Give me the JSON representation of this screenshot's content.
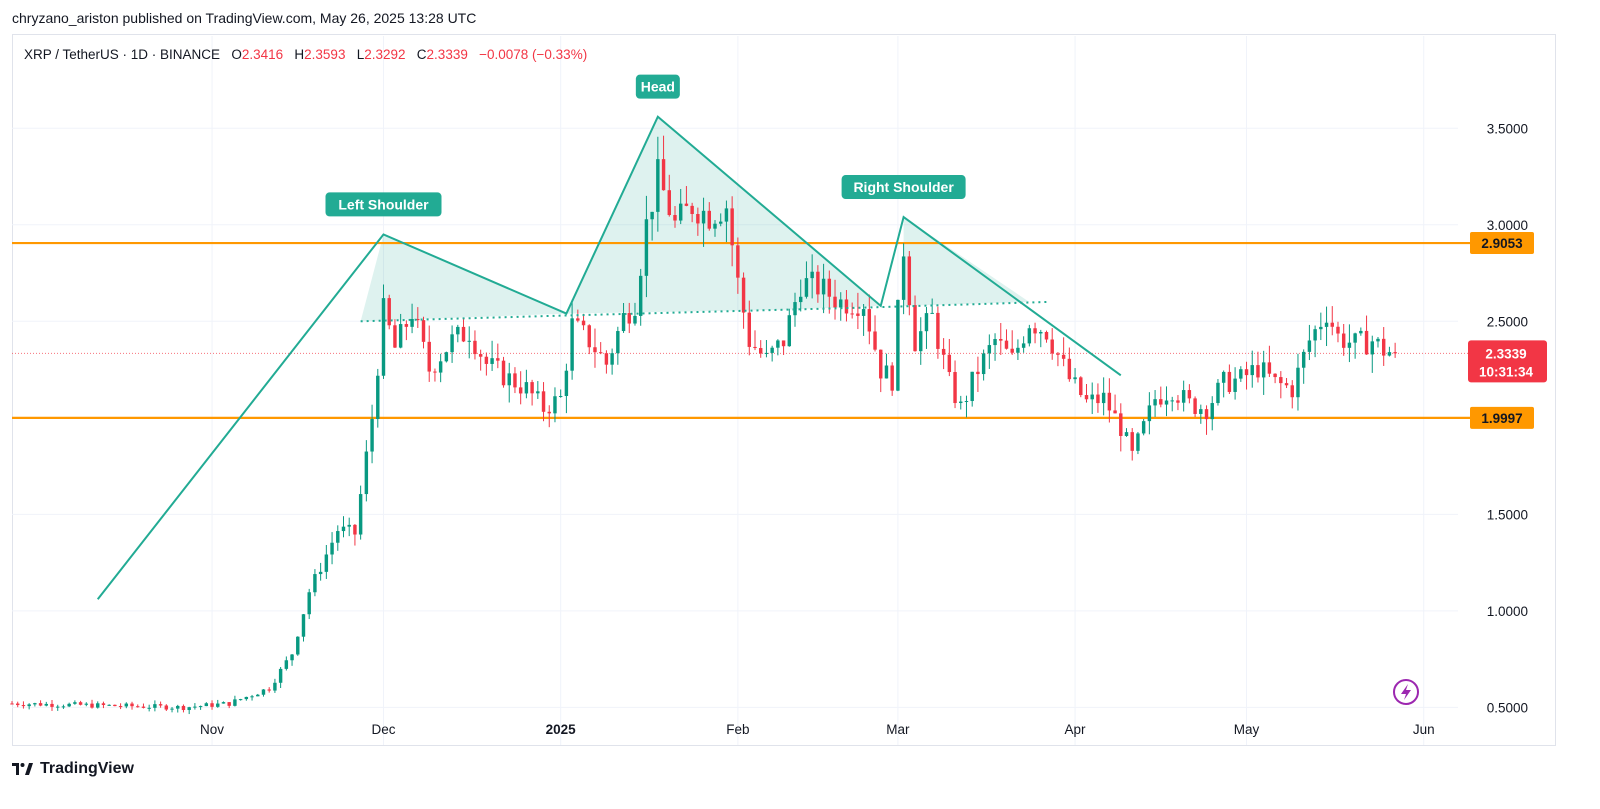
{
  "header": {
    "publish_line": "chryzano_ariston published on TradingView.com, May 26, 2025 13:28 UTC"
  },
  "legend": {
    "symbol": "XRP / TetherUS · 1D · BINANCE",
    "open_key": "O",
    "open": "2.3416",
    "high_key": "H",
    "high": "2.3593",
    "low_key": "L",
    "low": "2.3292",
    "close_key": "C",
    "close": "2.3339",
    "change": "−0.0078 (−0.33%)"
  },
  "footer": {
    "brand": "TradingView"
  },
  "chart_data": {
    "type": "candlestick",
    "ylim": [
      0.45,
      3.75
    ],
    "y_ticks": [
      "3.5000",
      "3.0000",
      "2.5000",
      "2.0000",
      "1.5000",
      "1.0000",
      "0.5000"
    ],
    "y_tick_values": [
      3.5,
      3.0,
      2.5,
      2.0,
      1.5,
      1.0,
      0.5
    ],
    "x_range_days": [
      -35,
      218
    ],
    "x_ticks": [
      {
        "label": "Nov",
        "day": 0,
        "bold": false
      },
      {
        "label": "Dec",
        "day": 30,
        "bold": false
      },
      {
        "label": "2025",
        "day": 61,
        "bold": true
      },
      {
        "label": "Feb",
        "day": 92,
        "bold": false
      },
      {
        "label": "Mar",
        "day": 120,
        "bold": false
      },
      {
        "label": "Apr",
        "day": 151,
        "bold": false
      },
      {
        "label": "May",
        "day": 181,
        "bold": false
      },
      {
        "label": "Jun",
        "day": 212,
        "bold": false
      }
    ],
    "x_axis_origin": "2024-11-01",
    "price_levels": [
      {
        "label": "2.9053",
        "value": 2.9053,
        "color": "#ff9800"
      },
      {
        "label": "1.9997",
        "value": 1.9997,
        "color": "#ff9800"
      }
    ],
    "current_price": {
      "label": "2.3339",
      "value": 2.3339,
      "countdown": "10:31:34",
      "color": "#f23645"
    },
    "annotations": [
      {
        "label": "Left Shoulder",
        "day": 30,
        "value": 2.95
      },
      {
        "label": "Head",
        "day": 78,
        "value": 3.56
      },
      {
        "label": "Right Shoulder",
        "day": 121,
        "value": 3.04
      }
    ],
    "pattern_lines": [
      [
        [
          -20,
          1.06
        ],
        [
          30,
          2.95
        ],
        [
          62,
          2.54
        ],
        [
          78,
          3.56
        ],
        [
          117,
          2.58
        ],
        [
          121,
          3.04
        ],
        [
          159,
          2.22
        ]
      ]
    ],
    "neckline": [
      [
        26,
        2.5
      ],
      [
        62,
        2.53
      ],
      [
        113,
        2.57
      ],
      [
        146,
        2.6
      ]
    ],
    "shaded_regions": [
      [
        [
          26,
          2.5
        ],
        [
          30,
          2.95
        ],
        [
          62,
          2.54
        ]
      ],
      [
        [
          62,
          2.54
        ],
        [
          78,
          3.56
        ],
        [
          117,
          2.58
        ],
        [
          100,
          2.56
        ]
      ],
      [
        [
          121,
          3.04
        ],
        [
          143,
          2.6
        ],
        [
          121,
          2.58
        ]
      ]
    ],
    "pattern_color": "#22ab94",
    "colors": {
      "up": "#089981",
      "down": "#f23645"
    },
    "candle_anchors": [
      [
        -35,
        0.52
      ],
      [
        -5,
        0.5
      ],
      [
        3,
        0.52
      ],
      [
        10,
        0.6
      ],
      [
        14,
        0.78
      ],
      [
        17,
        1.1
      ],
      [
        22,
        1.42
      ],
      [
        25,
        1.4
      ],
      [
        28,
        2.0
      ],
      [
        30,
        2.55
      ],
      [
        32,
        2.36
      ],
      [
        35,
        2.55
      ],
      [
        38,
        2.25
      ],
      [
        42,
        2.4
      ],
      [
        45,
        2.45
      ],
      [
        48,
        2.28
      ],
      [
        51,
        2.22
      ],
      [
        55,
        2.15
      ],
      [
        58,
        2.05
      ],
      [
        61,
        2.1
      ],
      [
        63,
        2.48
      ],
      [
        66,
        2.4
      ],
      [
        69,
        2.28
      ],
      [
        72,
        2.52
      ],
      [
        74,
        2.6
      ],
      [
        76,
        3.0
      ],
      [
        78,
        3.25
      ],
      [
        81,
        3.0
      ],
      [
        84,
        3.1
      ],
      [
        87,
        3.05
      ],
      [
        90,
        3.1
      ],
      [
        92,
        2.7
      ],
      [
        94,
        2.4
      ],
      [
        97,
        2.3
      ],
      [
        100,
        2.4
      ],
      [
        103,
        2.7
      ],
      [
        106,
        2.68
      ],
      [
        110,
        2.6
      ],
      [
        114,
        2.6
      ],
      [
        117,
        2.25
      ],
      [
        119,
        2.2
      ],
      [
        121,
        2.88
      ],
      [
        123,
        2.4
      ],
      [
        126,
        2.52
      ],
      [
        129,
        2.18
      ],
      [
        131,
        2.05
      ],
      [
        134,
        2.25
      ],
      [
        137,
        2.4
      ],
      [
        140,
        2.3
      ],
      [
        143,
        2.5
      ],
      [
        146,
        2.45
      ],
      [
        150,
        2.2
      ],
      [
        153,
        2.08
      ],
      [
        156,
        2.1
      ],
      [
        159,
        1.95
      ],
      [
        161,
        1.8
      ],
      [
        163,
        1.95
      ],
      [
        165,
        2.1
      ],
      [
        168,
        2.15
      ],
      [
        171,
        2.07
      ],
      [
        174,
        2.05
      ],
      [
        177,
        2.18
      ],
      [
        180,
        2.2
      ],
      [
        183,
        2.26
      ],
      [
        186,
        2.18
      ],
      [
        189,
        2.15
      ],
      [
        192,
        2.4
      ],
      [
        195,
        2.55
      ],
      [
        197,
        2.42
      ],
      [
        200,
        2.38
      ],
      [
        203,
        2.4
      ],
      [
        205,
        2.35
      ],
      [
        207,
        2.3339
      ]
    ],
    "candle_start_day": -35,
    "candle_end_day": 207
  }
}
